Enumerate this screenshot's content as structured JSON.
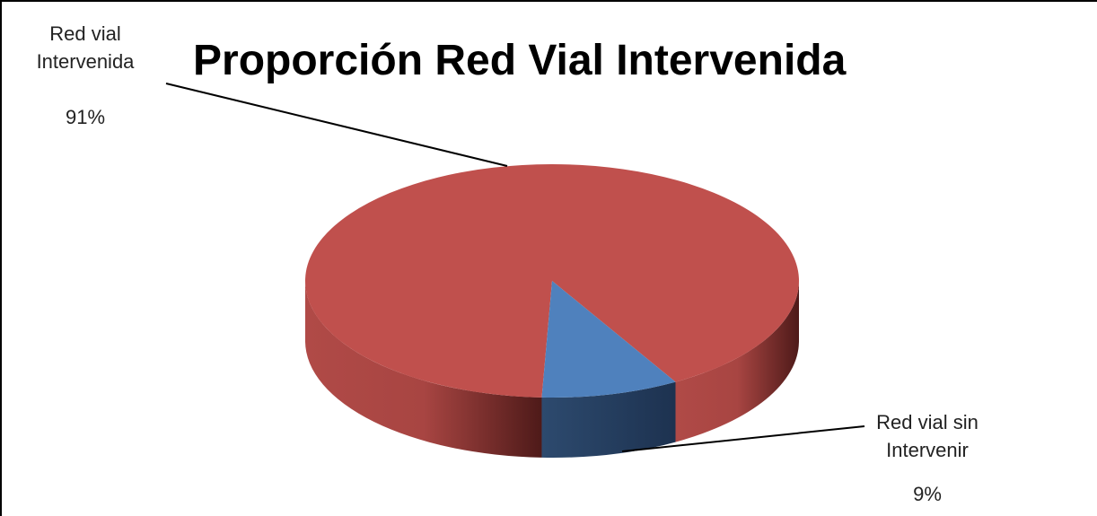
{
  "chart_data": {
    "type": "pie",
    "title": "Proporción Red Vial Intervenida",
    "categories": [
      "Red vial Intervenida",
      "Red vial sin Intervenir"
    ],
    "values": [
      91,
      9
    ],
    "value_labels": [
      "91%",
      "9%"
    ],
    "colors": [
      "#c0504d",
      "#4f81bd"
    ],
    "three_d": true
  }
}
